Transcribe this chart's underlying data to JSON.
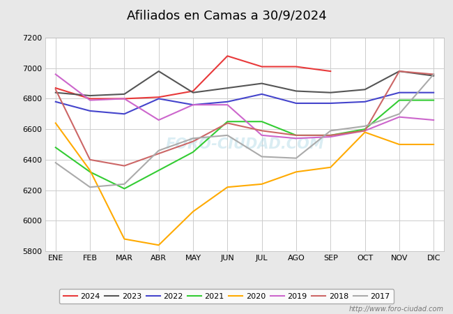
{
  "title": "Afiliados en Camas a 30/9/2024",
  "ylim": [
    5800,
    7200
  ],
  "yticks": [
    5800,
    6000,
    6200,
    6400,
    6600,
    6800,
    7000,
    7200
  ],
  "months": [
    "ENE",
    "FEB",
    "MAR",
    "ABR",
    "MAY",
    "JUN",
    "JUL",
    "AGO",
    "SEP",
    "OCT",
    "NOV",
    "DIC"
  ],
  "url": "http://www.foro-ciudad.com",
  "watermark": "FORO-CIUDAD.COM",
  "series": {
    "2024": {
      "color": "#e8393a",
      "data": [
        6870,
        6800,
        6800,
        6810,
        6850,
        7080,
        7010,
        7010,
        6980,
        null,
        null,
        null
      ]
    },
    "2023": {
      "color": "#555555",
      "data": [
        6840,
        6820,
        6830,
        6980,
        6840,
        6870,
        6900,
        6850,
        6840,
        6860,
        6980,
        6950
      ]
    },
    "2022": {
      "color": "#4444cc",
      "data": [
        6780,
        6720,
        6700,
        6800,
        6760,
        6780,
        6830,
        6770,
        6770,
        6780,
        6840,
        6840
      ]
    },
    "2021": {
      "color": "#33cc33",
      "data": [
        6480,
        6320,
        6210,
        6330,
        6450,
        6650,
        6650,
        6560,
        6560,
        6600,
        6790,
        6790
      ]
    },
    "2020": {
      "color": "#ffaa00",
      "data": [
        6640,
        6330,
        5880,
        5840,
        6060,
        6220,
        6240,
        6320,
        6350,
        6580,
        6500,
        6500
      ]
    },
    "2019": {
      "color": "#cc66cc",
      "data": [
        6960,
        6790,
        6800,
        6660,
        6760,
        6760,
        6560,
        6540,
        6550,
        6590,
        6680,
        6660
      ]
    },
    "2018": {
      "color": "#cc6666",
      "data": [
        6860,
        6400,
        6360,
        6440,
        6520,
        6640,
        6590,
        6560,
        6560,
        6590,
        6980,
        6960
      ]
    },
    "2017": {
      "color": "#aaaaaa",
      "data": [
        6380,
        6220,
        6240,
        6460,
        6540,
        6560,
        6420,
        6410,
        6590,
        6620,
        6700,
        6960
      ]
    }
  },
  "legend_order": [
    "2024",
    "2023",
    "2022",
    "2021",
    "2020",
    "2019",
    "2018",
    "2017"
  ],
  "bg_color": "#e8e8e8",
  "plot_bg_color": "#ffffff",
  "grid_color": "#cccccc",
  "title_bg": "#5577aa",
  "title_fontsize": 13,
  "linewidth": 1.5
}
